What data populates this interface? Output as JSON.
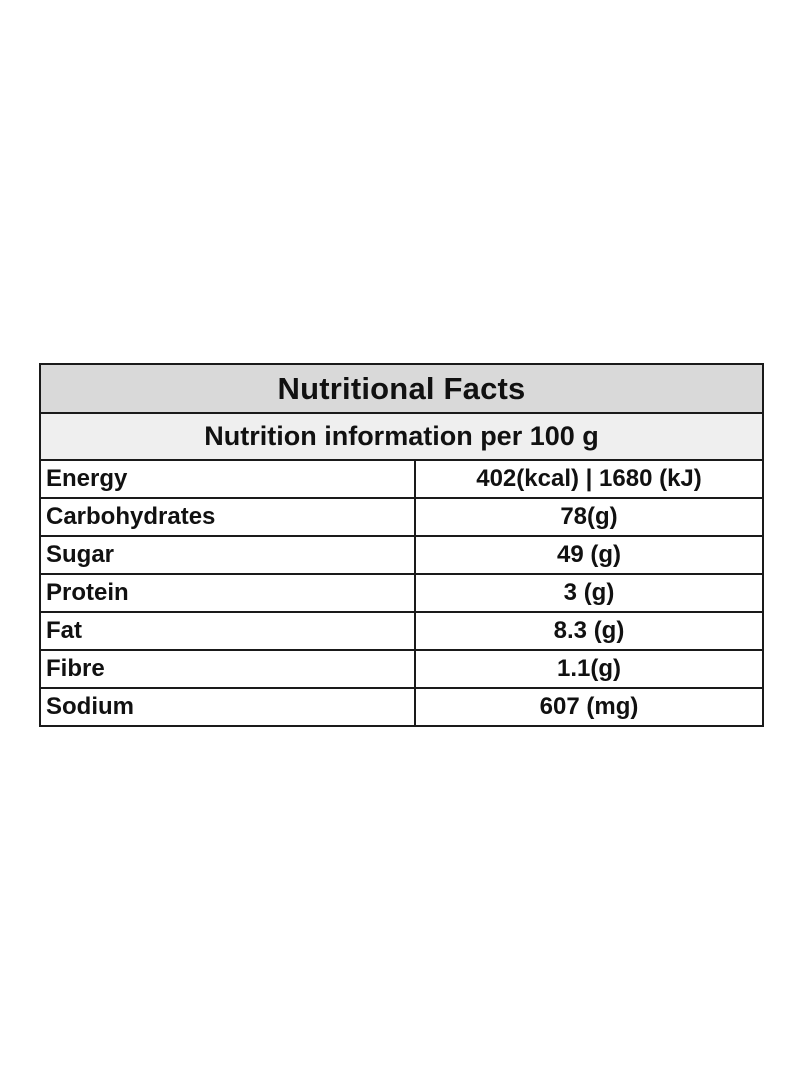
{
  "table": {
    "title": "Nutritional Facts",
    "subtitle": "Nutrition information per 100 g",
    "rows": [
      {
        "label": "Energy",
        "value": "402(kcal) | 1680 (kJ)"
      },
      {
        "label": "Carbohydrates",
        "value": "78(g)"
      },
      {
        "label": "Sugar",
        "value": "49 (g)"
      },
      {
        "label": "Protein",
        "value": "3 (g)"
      },
      {
        "label": "Fat",
        "value": "8.3 (g)"
      },
      {
        "label": "Fibre",
        "value": "1.1(g)"
      },
      {
        "label": "Sodium",
        "value": "607 (mg)"
      }
    ],
    "colors": {
      "title_bg": "#d9d9d9",
      "subtitle_bg": "#efefef",
      "border": "#1a1a1a"
    }
  }
}
